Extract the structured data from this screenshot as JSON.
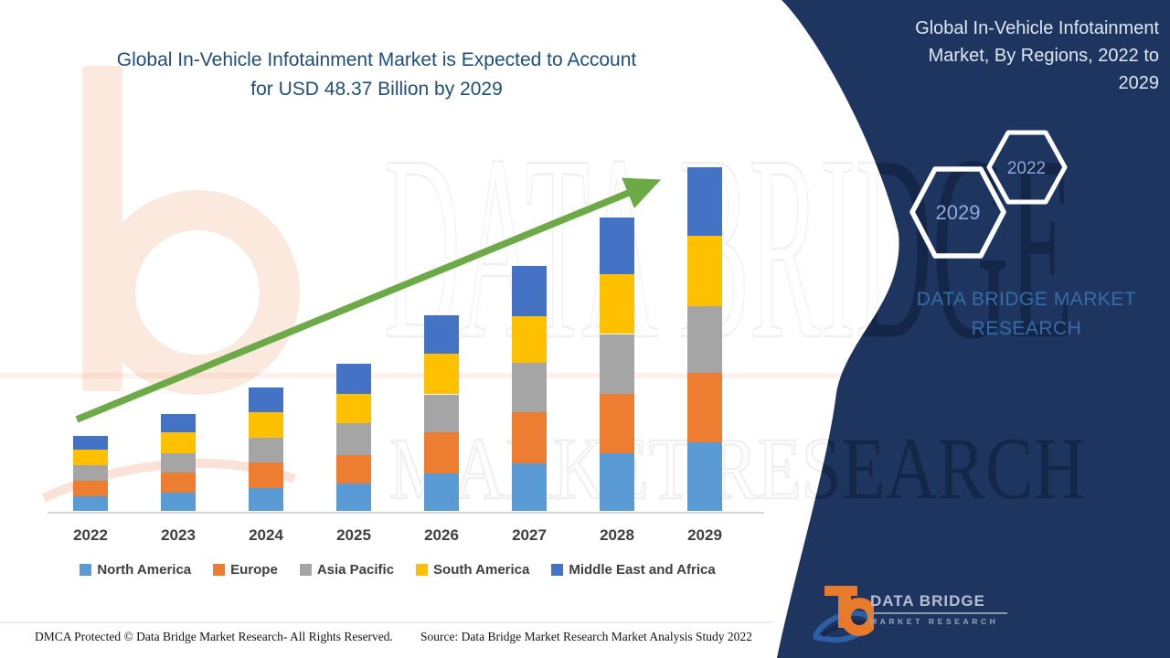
{
  "chart_title": {
    "lines": [
      "Global In-Vehicle Infotainment Market is Expected to Account",
      "for USD 48.37 Billion by 2029"
    ],
    "color": "#1F4E79"
  },
  "panel": {
    "bg_color": "#1E3560",
    "title_lines": [
      "Global In-Vehicle Infotainment",
      "Market, By Regions, 2022 to",
      "2029"
    ],
    "hexagon_large_label": "2029",
    "hexagon_small_label": "2022",
    "brand_line1": "DATA BRIDGE MARKET",
    "brand_line2": "RESEARCH",
    "brand_color": "#356DA8"
  },
  "logo": {
    "word1": "DATA",
    "word2": "BRIDGE",
    "subtitle": "MARKET RESEARCH",
    "b_color": "#E87A2C",
    "swirl_color": "#2E5FA3"
  },
  "footer": {
    "left": "DMCA Protected © Data Bridge Market Research- All Rights Reserved.",
    "right": "Source: Data Bridge Market Research Market Analysis Study 2022"
  },
  "watermark": {
    "row1": "DATA BRIDGE",
    "row2": "MARKET RESEARCH"
  },
  "chart_data": {
    "type": "bar",
    "stacked": true,
    "title": "Global In-Vehicle Infotainment Market is Expected to Account for USD 48.37 Billion by 2029",
    "unit": "USD Billion",
    "categories": [
      "2022",
      "2023",
      "2024",
      "2025",
      "2026",
      "2027",
      "2028",
      "2029"
    ],
    "series": [
      {
        "name": "North America",
        "color": "#5B9BD5",
        "values": [
          2.1,
          2.6,
          3.2,
          3.9,
          5.3,
          6.7,
          8.1,
          9.7
        ]
      },
      {
        "name": "Europe",
        "color": "#ED7D31",
        "values": [
          2.1,
          2.8,
          3.6,
          4.0,
          5.8,
          7.2,
          8.4,
          9.7
        ]
      },
      {
        "name": "Asia Pacific",
        "color": "#A5A5A5",
        "values": [
          2.2,
          2.7,
          3.5,
          4.5,
          5.3,
          6.9,
          8.4,
          9.4
        ]
      },
      {
        "name": "South America",
        "color": "#FFC000",
        "values": [
          2.2,
          3.0,
          3.6,
          4.1,
          5.7,
          6.6,
          8.4,
          9.9
        ]
      },
      {
        "name": "Middle East and Africa",
        "color": "#4472C4",
        "values": [
          1.9,
          2.6,
          3.5,
          4.2,
          5.4,
          7.1,
          8.0,
          9.67
        ]
      }
    ],
    "totals": [
      10.5,
      13.7,
      17.4,
      20.7,
      27.5,
      34.5,
      41.3,
      48.37
    ],
    "highlight_value_2029": 48.37,
    "ylim": [
      0,
      50
    ],
    "grid": false,
    "legend_position": "bottom",
    "trend_arrow": {
      "present": true,
      "color": "#6BAA46"
    }
  }
}
